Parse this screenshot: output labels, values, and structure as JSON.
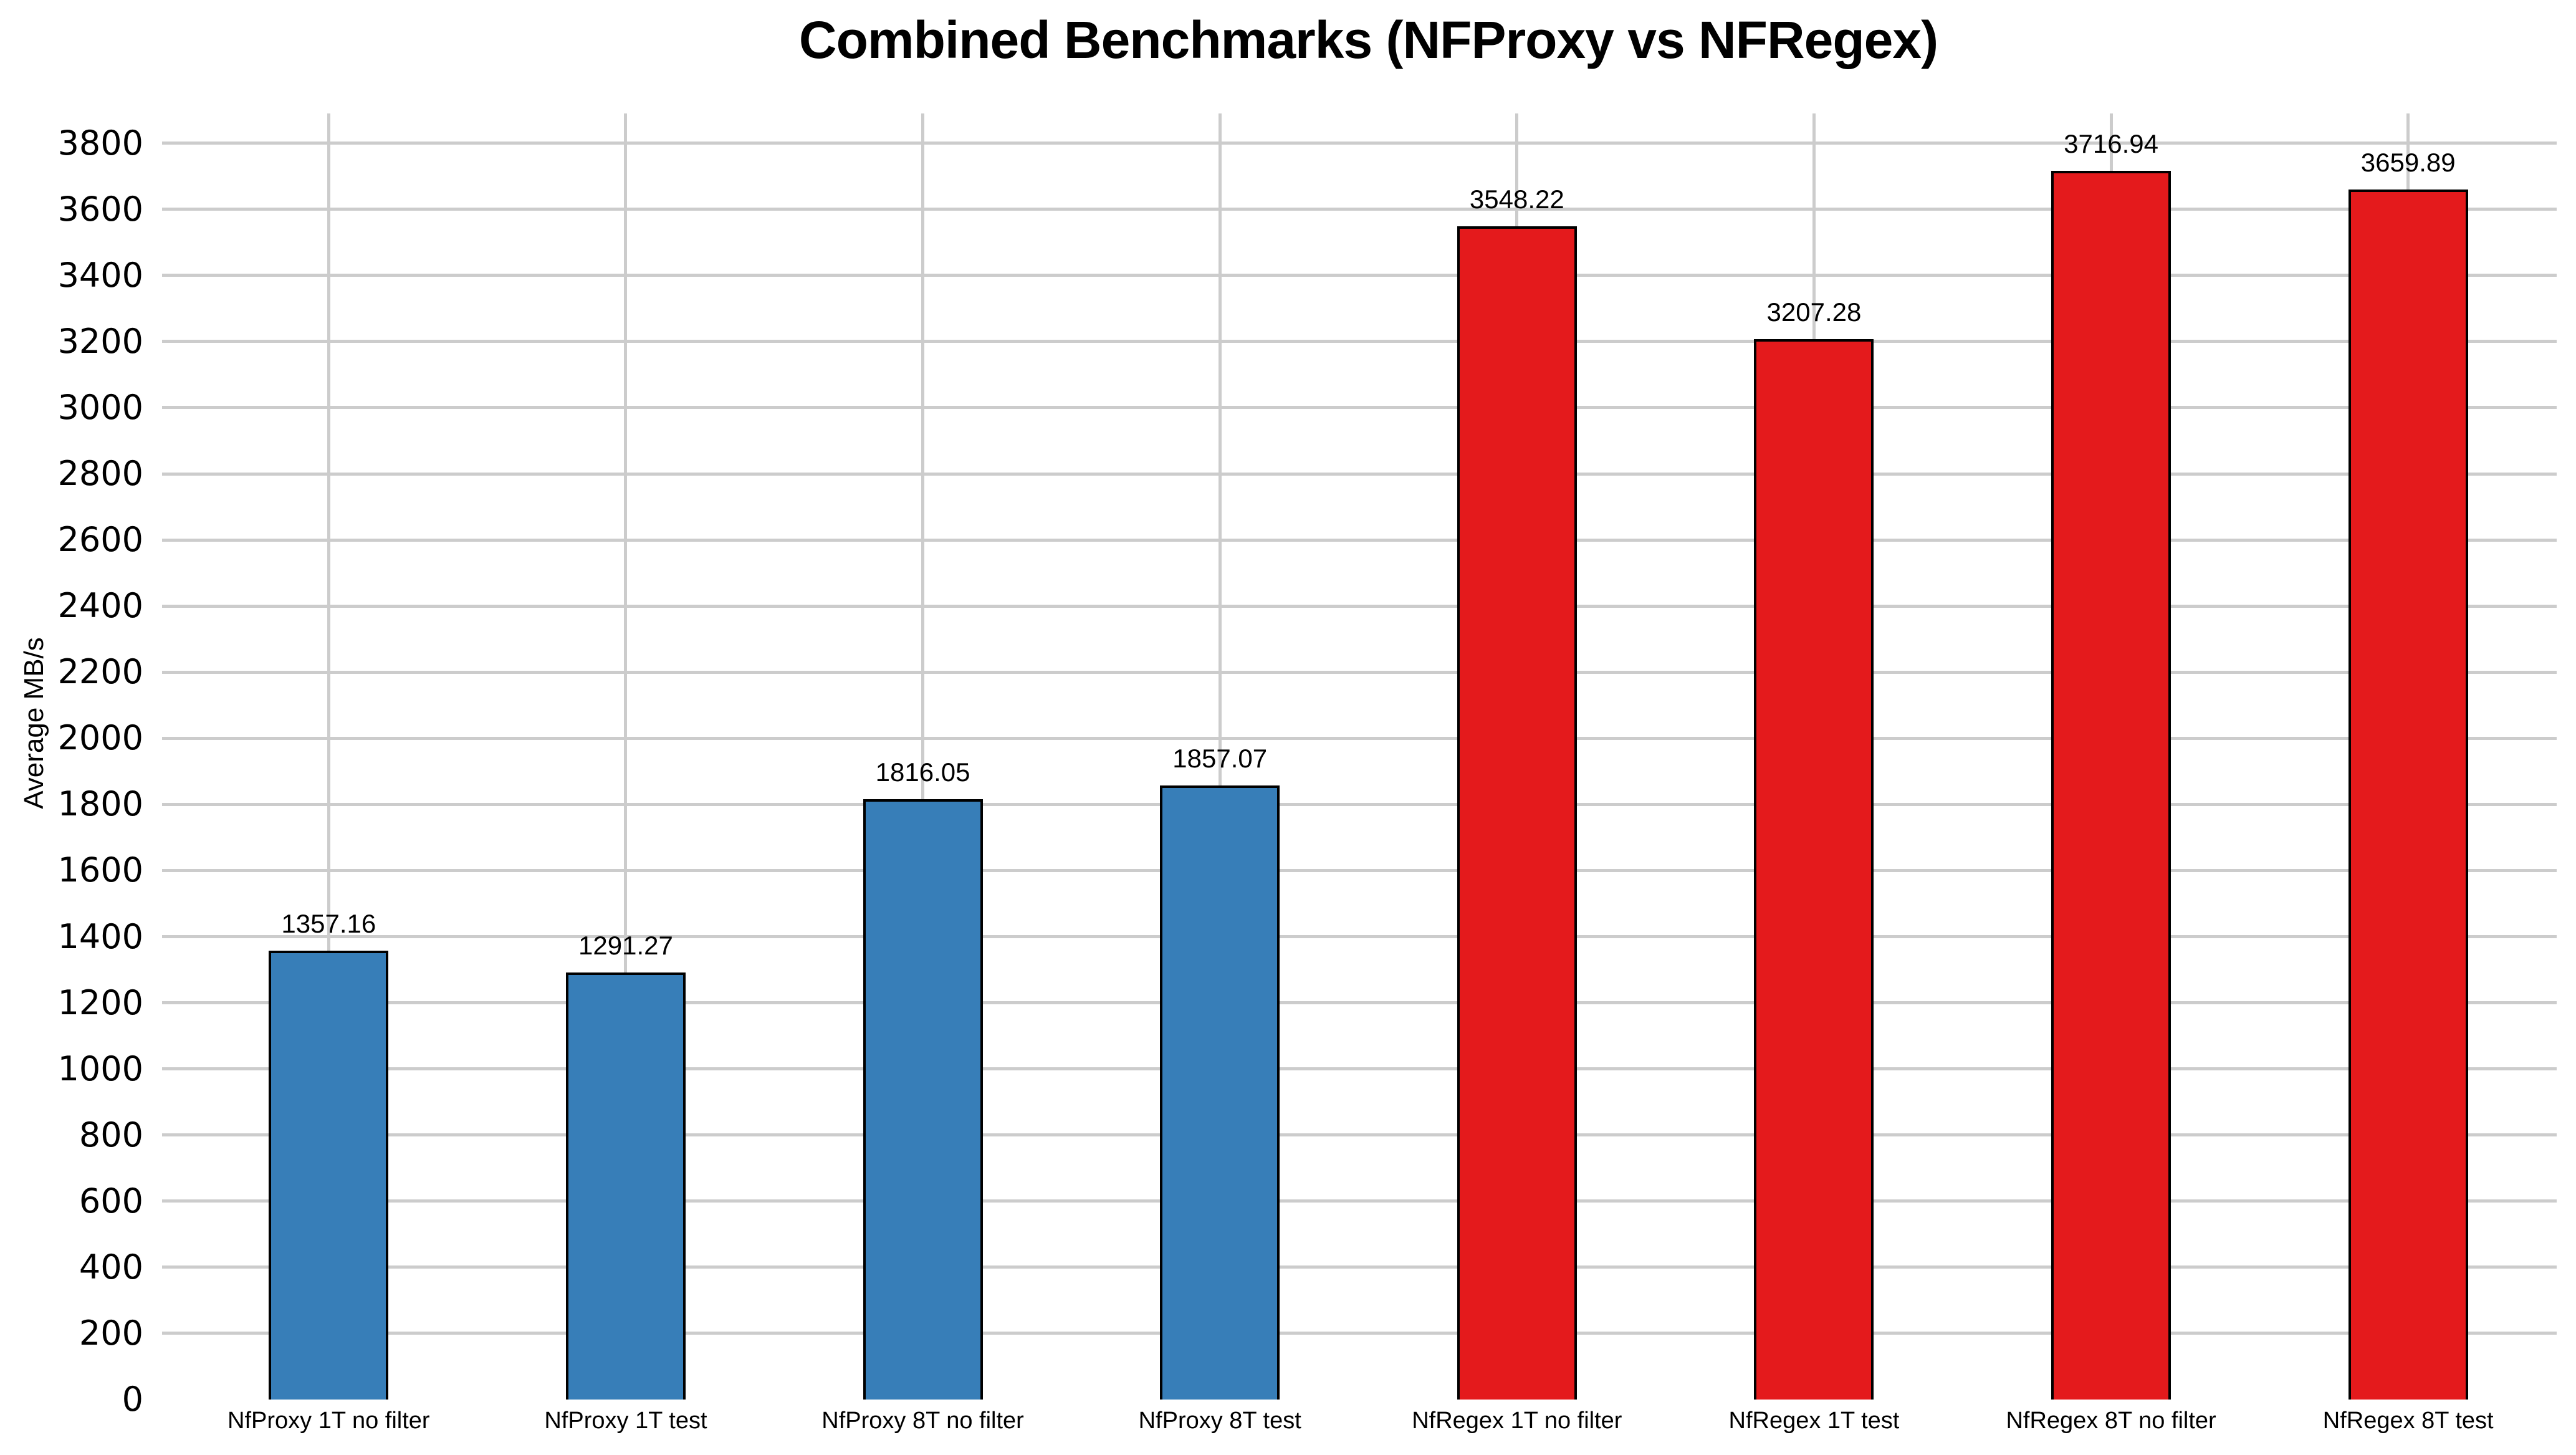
{
  "chart_data": {
    "type": "bar",
    "title": "Combined Benchmarks (NFProxy vs NFRegex)",
    "ylabel": "Average MB/s",
    "xlabel": "",
    "categories": [
      "NfProxy 1T no filter",
      "NfProxy 1T test",
      "NfProxy 8T no filter",
      "NfProxy 8T test",
      "NfRegex 1T no filter",
      "NfRegex 1T test",
      "NfRegex 8T no filter",
      "NfRegex 8T test"
    ],
    "values": [
      1357.16,
      1291.27,
      1816.05,
      1857.07,
      3548.22,
      3207.28,
      3716.94,
      3659.89
    ],
    "value_labels": [
      "1357.16",
      "1291.27",
      "1816.05",
      "1857.07",
      "3548.22",
      "3207.28",
      "3716.94",
      "3659.89"
    ],
    "series": [
      {
        "name": "NFProxy",
        "color": "#377EB8",
        "bar_indices": [
          0,
          1,
          2,
          3
        ]
      },
      {
        "name": "NFRegex",
        "color": "#E41A1C",
        "bar_indices": [
          4,
          5,
          6,
          7
        ]
      }
    ],
    "bar_colors": [
      "#377EB8",
      "#377EB8",
      "#377EB8",
      "#377EB8",
      "#E41A1C",
      "#E41A1C",
      "#E41A1C",
      "#E41A1C"
    ],
    "yticks": [
      0,
      200,
      400,
      600,
      800,
      1000,
      1200,
      1400,
      1600,
      1800,
      2000,
      2200,
      2400,
      2600,
      2800,
      3000,
      3200,
      3400,
      3600,
      3800
    ],
    "ylim": [
      0,
      3890
    ],
    "grid": true,
    "legend": "none",
    "style": {
      "gridline_color": "#CCCCCC",
      "bar_edge_color": "#000000",
      "background": "#FFFFFF",
      "text_color": "#000000"
    }
  }
}
